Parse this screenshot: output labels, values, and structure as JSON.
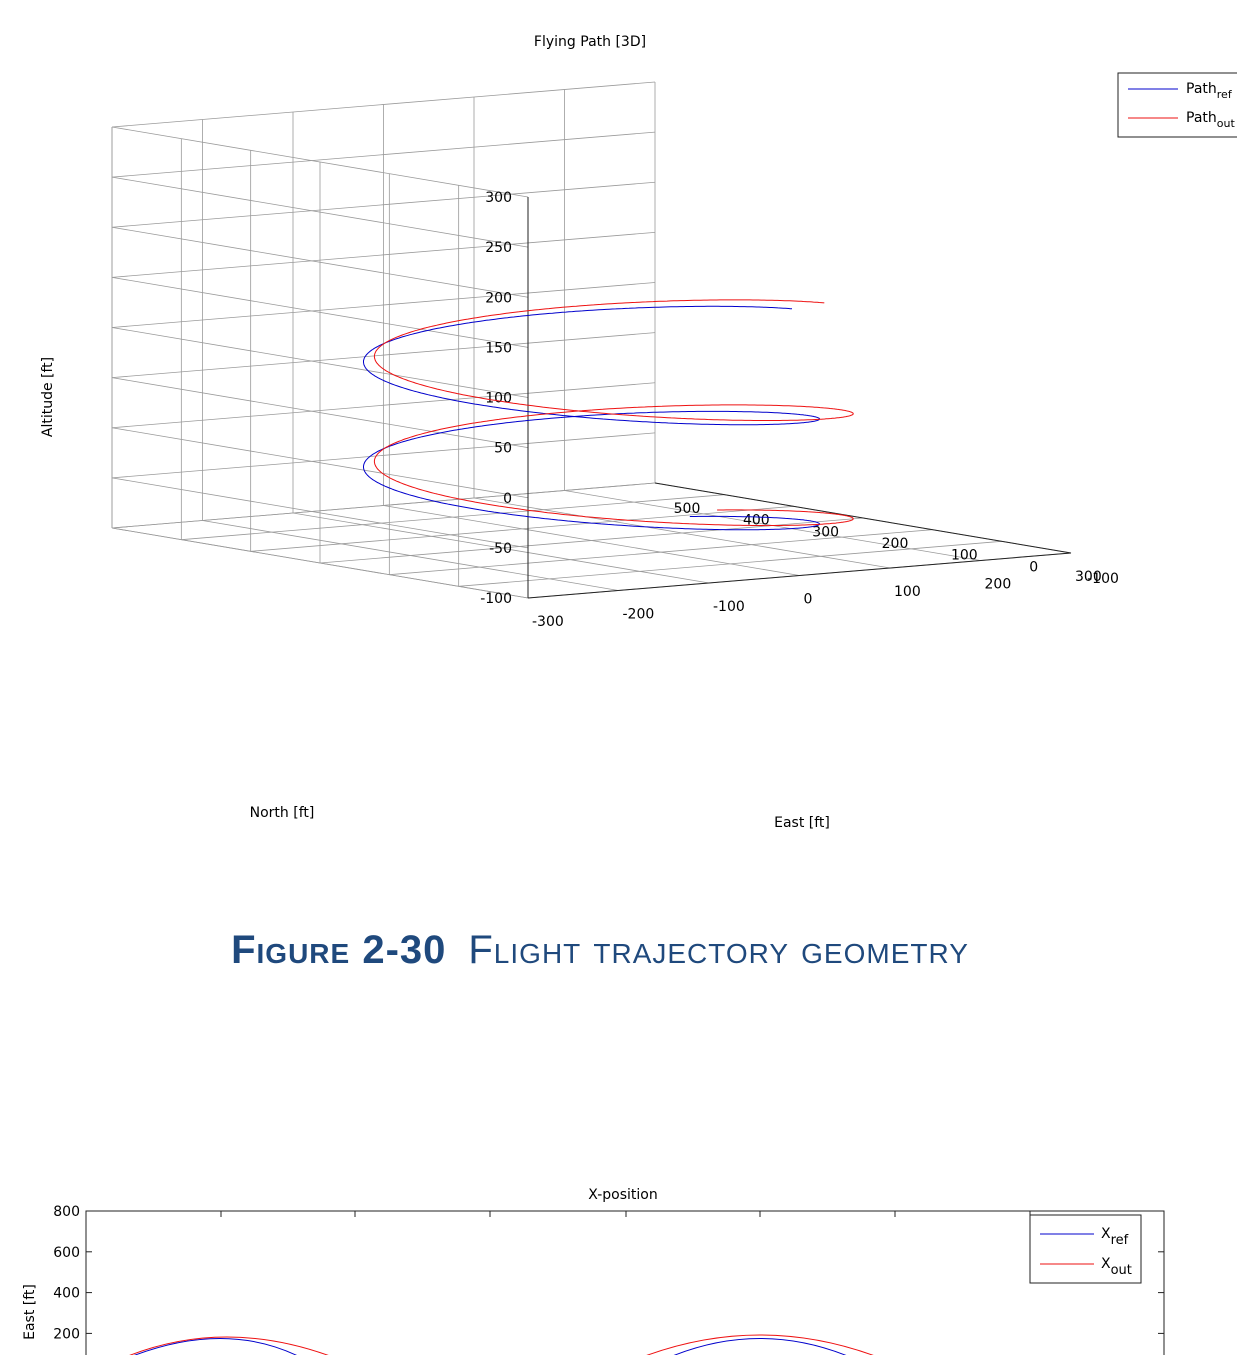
{
  "figure_caption": {
    "number": "Figure 2-30",
    "text": "Flight trajectory geometry"
  },
  "colors": {
    "ref": "#0000cc",
    "out": "#ee1111",
    "caption": "#1f497d"
  },
  "chart_data": [
    {
      "type": "line3d",
      "title": "Flying Path [3D]",
      "xlabel": "North [ft]",
      "ylabel": "East [ft]",
      "zlabel": "Altitude [ft]",
      "xlim": [
        -100,
        500
      ],
      "ylim": [
        -300,
        300
      ],
      "zlim": [
        -100,
        300
      ],
      "xticks": [
        "-100",
        "0",
        "100",
        "200",
        "300",
        "400",
        "500"
      ],
      "yticks": [
        "-300",
        "-200",
        "-100",
        "0",
        "100",
        "200",
        "300"
      ],
      "zticks": [
        "-100",
        "-50",
        "0",
        "50",
        "100",
        "150",
        "200",
        "250",
        "300"
      ],
      "grid": true,
      "legend_position": "top-right",
      "series": [
        {
          "name": "Path",
          "subscript": "ref",
          "color": "#0000cc",
          "helix": {
            "center_north": 200,
            "center_east": 0,
            "radius": 200,
            "start_altitude": -100,
            "end_altitude": 120,
            "turns": 2.1
          }
        },
        {
          "name": "Path",
          "subscript": "out",
          "color": "#ee1111",
          "helix": {
            "center_north": 220,
            "center_east": 40,
            "radius": 210,
            "start_altitude": -100,
            "end_altitude": 120,
            "turns": 2.1
          }
        }
      ]
    },
    {
      "type": "line",
      "title": "X-position",
      "ylabel": "East [ft]",
      "ylim": [
        -800,
        800
      ],
      "yticks": [
        "800",
        "600",
        "400",
        "200"
      ],
      "legend_position": "top-right",
      "series": [
        {
          "name": "X",
          "subscript": "ref",
          "color": "#0000cc"
        },
        {
          "name": "X",
          "subscript": "out",
          "color": "#ee1111"
        }
      ]
    }
  ]
}
